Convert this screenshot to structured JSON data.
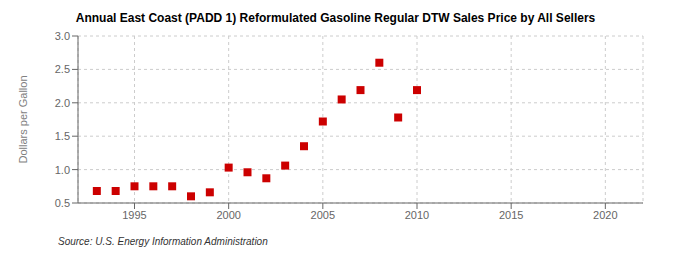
{
  "chart_data": {
    "type": "scatter",
    "title": "Annual East Coast (PADD 1) Reformulated Gasoline Regular DTW Sales Price by All Sellers",
    "ylabel": "Dollars per Gallon",
    "annotation": "Source: U.S. Energy Information Administration",
    "x": [
      1993,
      1994,
      1995,
      1996,
      1997,
      1998,
      1999,
      2000,
      2001,
      2002,
      2003,
      2004,
      2005,
      2006,
      2007,
      2008,
      2009,
      2010
    ],
    "values": [
      0.68,
      0.68,
      0.75,
      0.75,
      0.75,
      0.6,
      0.66,
      1.03,
      0.96,
      0.87,
      1.06,
      1.35,
      1.72,
      2.05,
      2.19,
      2.6,
      1.78,
      2.19
    ],
    "color": "#cc0000",
    "marker": "square",
    "xlim": [
      1992,
      2022
    ],
    "ylim": [
      0.5,
      3.0
    ],
    "xticks": [
      1995,
      2000,
      2005,
      2010,
      2015,
      2020
    ],
    "yticks": [
      0.5,
      {
        "value": 1.0,
        "label": "1.0"
      },
      1.5,
      {
        "value": 2.0,
        "label": "2.0"
      },
      2.5,
      {
        "value": 3.0,
        "label": "3.0"
      }
    ],
    "grid": true
  }
}
